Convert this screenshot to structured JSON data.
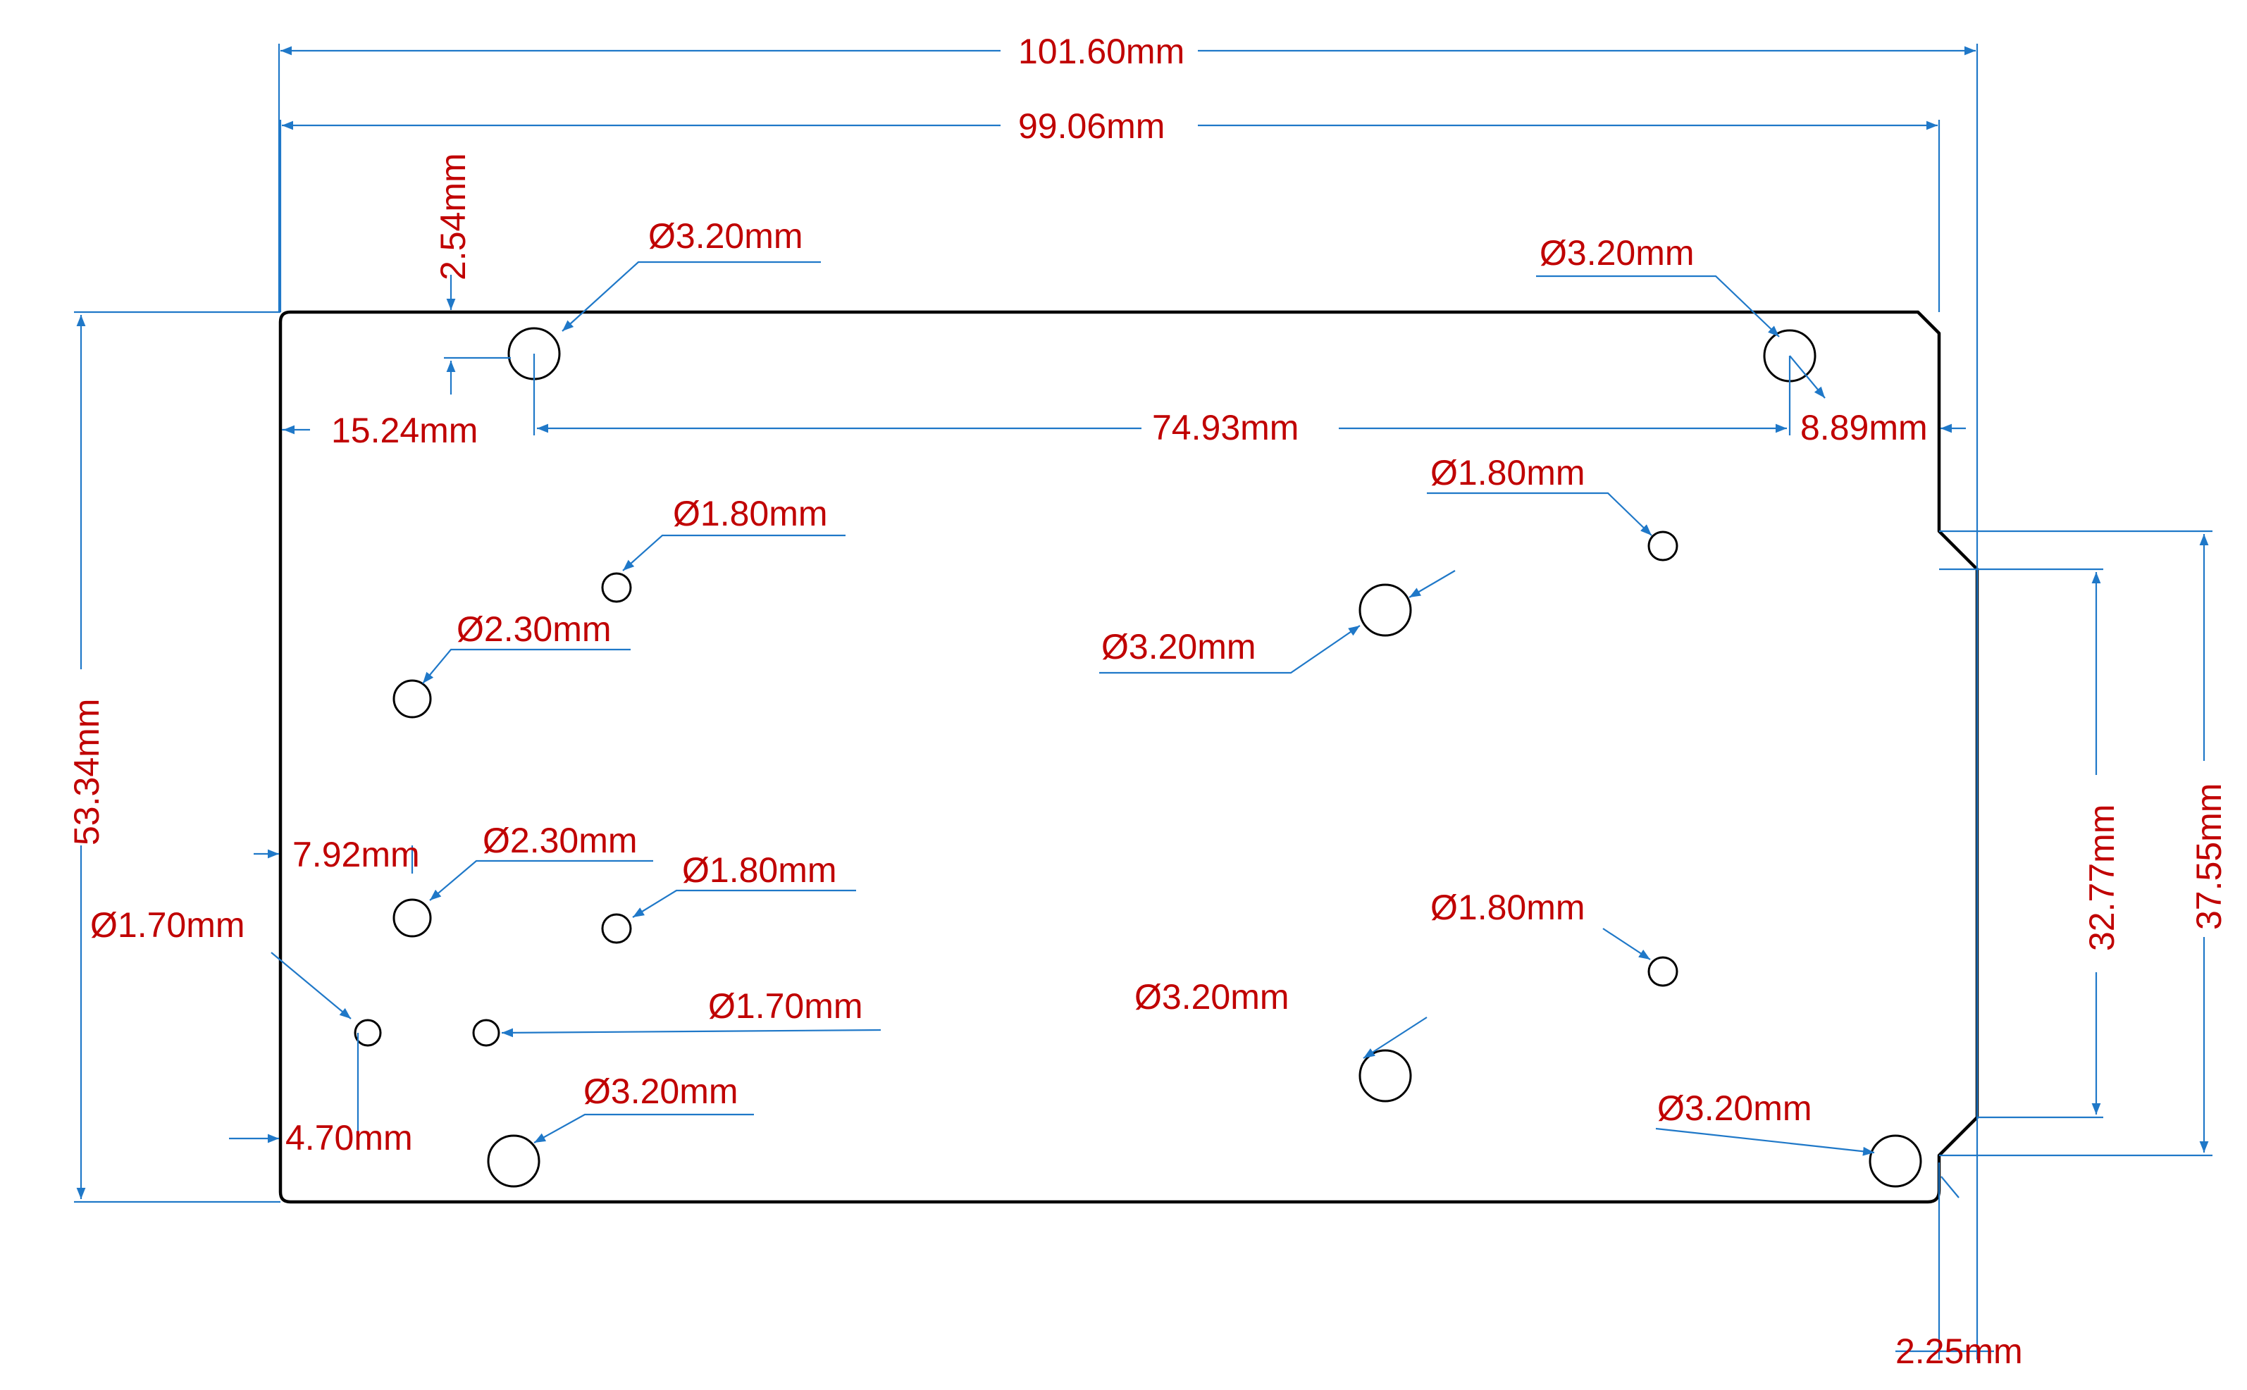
{
  "colors": {
    "outline": "#000000",
    "dimension_line": "#1f78c8",
    "dimension_text": "#c00000",
    "background": "#ffffff"
  },
  "dimensions": {
    "overall_width": "101.60mm",
    "board_width": "99.06mm",
    "top_offset": "2.54mm",
    "hole_left_offset": "15.24mm",
    "hole_spacing": "74.93mm",
    "right_hole_offset": "8.89mm",
    "height": "53.34mm",
    "offset_7_92": "7.92mm",
    "offset_4_70": "4.70mm",
    "notch_height_inner": "32.77mm",
    "notch_height_outer": "37.55mm",
    "bottom_right_offset": "2.25mm"
  },
  "holes": {
    "top_left": "Ø3.20mm",
    "top_right": "Ø3.20mm",
    "mid_right_upper_small": "Ø1.80mm",
    "left_upper_small": "Ø1.80mm",
    "left_upper_medium": "Ø2.30mm",
    "center_upper": "Ø3.20mm",
    "left_mid_medium": "Ø2.30mm",
    "left_mid_small": "Ø1.80mm",
    "right_lower_small": "Ø1.80mm",
    "left_lower_tiny": "Ø1.70mm",
    "left_lower_tiny_2": "Ø1.70mm",
    "center_lower": "Ø3.20mm",
    "bottom_left": "Ø3.20mm",
    "bottom_right": "Ø3.20mm"
  }
}
